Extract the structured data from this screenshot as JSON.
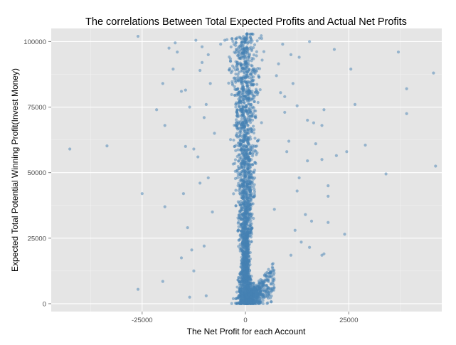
{
  "chart_data": {
    "type": "scatter",
    "title": "The correlations Between Total Expected Profits and Actual Net Profits",
    "xlabel": "The Net Profit for each Account",
    "ylabel": "Expected Total Potential Winning Profit(Invest Money)",
    "xlim": [
      -47000,
      47500
    ],
    "ylim": [
      -3000,
      105000
    ],
    "x_ticks": [
      -25000,
      0,
      25000
    ],
    "x_tick_labels": [
      "-25000",
      "0",
      "25000"
    ],
    "y_ticks": [
      0,
      25000,
      50000,
      75000,
      100000
    ],
    "y_tick_labels": [
      "0",
      "25000",
      "50000",
      "75000",
      "100000"
    ],
    "grid": true,
    "point_color": "#4682b4",
    "panel_background": "#e5e5e5",
    "series": [
      {
        "points": [
          [
            -42500,
            59000
          ],
          [
            -33500,
            60200
          ],
          [
            -26000,
            102000
          ],
          [
            -25000,
            42000
          ],
          [
            -26000,
            5500
          ],
          [
            -21500,
            74000
          ],
          [
            -20000,
            84000
          ],
          [
            -19500,
            68000
          ],
          [
            -19500,
            37000
          ],
          [
            -20000,
            8500
          ],
          [
            -18500,
            97500
          ],
          [
            -17000,
            99500
          ],
          [
            -16500,
            96000
          ],
          [
            -17500,
            89500
          ],
          [
            -15500,
            81000
          ],
          [
            -14500,
            81500
          ],
          [
            -14500,
            60000
          ],
          [
            -15000,
            42000
          ],
          [
            -14000,
            29000
          ],
          [
            -13000,
            20500
          ],
          [
            -12500,
            59000
          ],
          [
            -11500,
            56000
          ],
          [
            -11000,
            89000
          ],
          [
            -10500,
            92000
          ],
          [
            -10000,
            71000
          ],
          [
            -9000,
            48000
          ],
          [
            -8000,
            35000
          ],
          [
            -7500,
            65000
          ],
          [
            -12000,
            100500
          ],
          [
            -10500,
            98000
          ],
          [
            -9000,
            95000
          ],
          [
            -8500,
            84000
          ],
          [
            -9500,
            76000
          ],
          [
            -13500,
            75000
          ],
          [
            -11000,
            46000
          ],
          [
            -10000,
            22000
          ],
          [
            -9500,
            3000
          ],
          [
            -13500,
            2500
          ],
          [
            -6000,
            99000
          ],
          [
            -5000,
            100500
          ],
          [
            -15500,
            17500
          ],
          [
            -12500,
            12500
          ],
          [
            37000,
            96000
          ],
          [
            45500,
            88000
          ],
          [
            46000,
            52500
          ],
          [
            39000,
            82000
          ],
          [
            39000,
            72500
          ],
          [
            34000,
            49500
          ],
          [
            29000,
            60500
          ],
          [
            26500,
            76000
          ],
          [
            25500,
            89500
          ],
          [
            24500,
            58000
          ],
          [
            24000,
            26500
          ],
          [
            22000,
            56500
          ],
          [
            20000,
            45000
          ],
          [
            20000,
            41000
          ],
          [
            20000,
            31000
          ],
          [
            19000,
            74000
          ],
          [
            18500,
            68000
          ],
          [
            18500,
            55000
          ],
          [
            17000,
            61000
          ],
          [
            16500,
            69000
          ],
          [
            15500,
            100000
          ],
          [
            15000,
            70000
          ],
          [
            14500,
            34000
          ],
          [
            13000,
            94000
          ],
          [
            13000,
            48000
          ],
          [
            12500,
            43000
          ],
          [
            12000,
            28000
          ],
          [
            11000,
            95000
          ],
          [
            10500,
            62000
          ],
          [
            10000,
            58000
          ],
          [
            9500,
            73000
          ],
          [
            9000,
            99000
          ],
          [
            8500,
            80500
          ],
          [
            8000,
            91500
          ],
          [
            7500,
            87000
          ],
          [
            7000,
            36000
          ],
          [
            6500,
            15000
          ],
          [
            11500,
            84000
          ],
          [
            12500,
            75500
          ],
          [
            18500,
            18500
          ],
          [
            19000,
            19000
          ],
          [
            15500,
            21500
          ],
          [
            13500,
            23500
          ],
          [
            11000,
            18500
          ],
          [
            16000,
            31500
          ],
          [
            15000,
            54500
          ],
          [
            9500,
            79000
          ],
          [
            21500,
            97000
          ]
        ]
      }
    ]
  }
}
